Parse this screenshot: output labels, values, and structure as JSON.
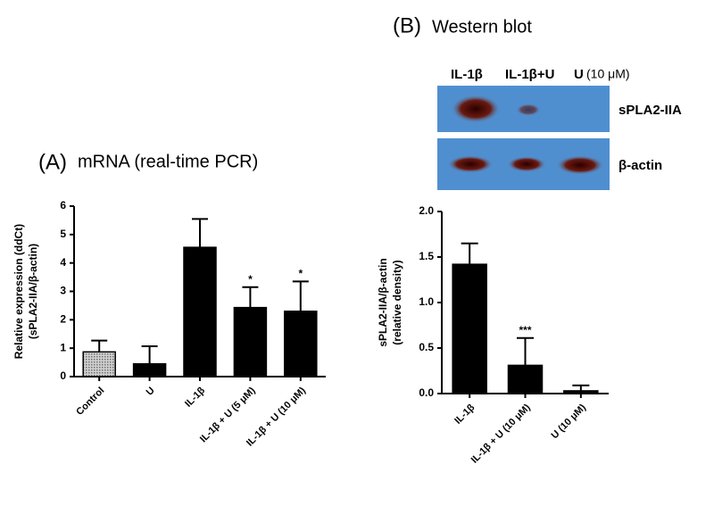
{
  "chart_data": [
    {
      "type": "bar",
      "panel": "(A)",
      "title": "mRNA (real-time PCR)",
      "ylabel": [
        "Relative expression (ddCt)",
        "(sPLA2-IIA/β-actin)"
      ],
      "categories": [
        "Control",
        "U",
        "IL-1β",
        "IL-1β + U (5 μM)",
        "IL-1β + U (10 μM)"
      ],
      "values": [
        0.87,
        0.45,
        4.55,
        2.43,
        2.3
      ],
      "errors": [
        0.4,
        0.62,
        1.0,
        0.72,
        1.05
      ],
      "significance": [
        null,
        null,
        null,
        "*",
        "*"
      ],
      "colors": [
        "#a0a0a0",
        "#000000",
        "#000000",
        "#000000",
        "#000000"
      ],
      "ylim": [
        0,
        6
      ],
      "yticks": [
        0,
        1,
        2,
        3,
        4,
        5,
        6
      ]
    },
    {
      "type": "bar",
      "panel": "(B)",
      "title": "Western blot",
      "blot": {
        "lanes": [
          "IL-1β",
          "IL-1β+U",
          "U"
        ],
        "lane_note": "(10 μM)",
        "rows": [
          "sPLA2-IIA",
          "β-actin"
        ]
      },
      "ylabel": [
        "sPLA2-IIA/β-actin",
        "(relative density)"
      ],
      "categories": [
        "IL-1β",
        "IL-1β + U (10 μM)",
        "U (10 μM)"
      ],
      "values": [
        1.42,
        0.31,
        0.03
      ],
      "errors": [
        0.23,
        0.3,
        0.06
      ],
      "significance": [
        null,
        "***",
        null
      ],
      "colors": [
        "#000000",
        "#000000",
        "#000000"
      ],
      "ylim": [
        0,
        2
      ],
      "yticks": [
        {
          "value": 0,
          "label": "0.0"
        },
        {
          "value": 0.5,
          "label": "0.5"
        },
        {
          "value": 1,
          "label": "1.0"
        },
        {
          "value": 1.5,
          "label": "1.5"
        },
        {
          "value": 2,
          "label": "2.0"
        }
      ]
    }
  ]
}
